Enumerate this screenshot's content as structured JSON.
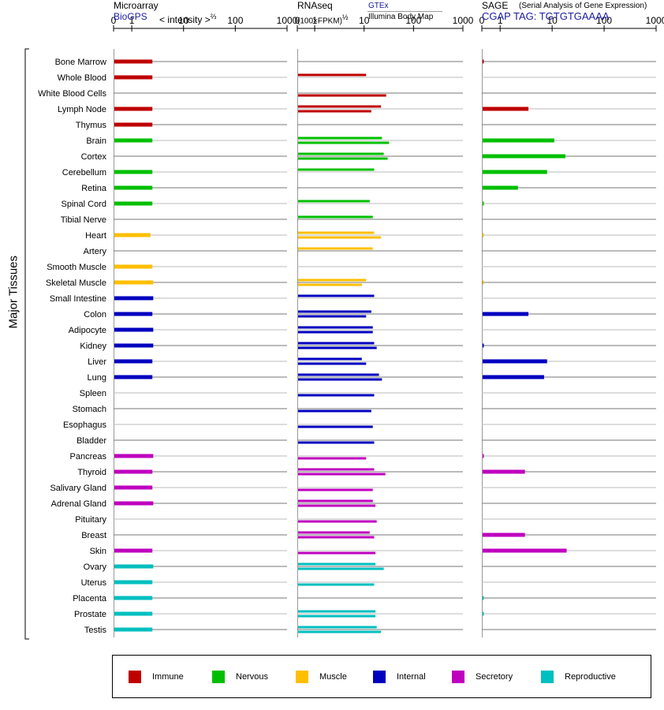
{
  "headers": {
    "microarray": {
      "title": "Microarray",
      "source": "BioGPS",
      "unit": "< intensity >",
      "unit_exp": "⅔"
    },
    "rnaseq": {
      "title": "RNAseq",
      "unit": "(100×FPKM)",
      "unit_exp": "½",
      "source": "GTEx",
      "source2": "Illumina Body Map"
    },
    "sage": {
      "title": "SAGE",
      "subtitle": "(Serial Analysis of Gene Expression)",
      "tag": "CGAP  TAG: TGTGTGAAAA"
    }
  },
  "legend": [
    {
      "label": "Immune",
      "color": "#bf0000"
    },
    {
      "label": "Nervous",
      "color": "#00bf00"
    },
    {
      "label": "Muscle",
      "color": "#ffbf00"
    },
    {
      "label": "Internal",
      "color": "#0000bf"
    },
    {
      "label": "Secretory",
      "color": "#bf00bf"
    },
    {
      "label": "Reproductive",
      "color": "#00bfbf"
    }
  ],
  "chart_data": {
    "type": "bar",
    "ylabel": "Major Tissues",
    "xticks": [
      "0",
      "1",
      "10",
      "100",
      "1000"
    ],
    "panels": [
      "Microarray",
      "RNAseq",
      "SAGE"
    ],
    "categories": [
      "Bone Marrow",
      "Whole Blood",
      "White Blood Cells",
      "Lymph Node",
      "Thymus",
      "Brain",
      "Cortex",
      "Cerebellum",
      "Retina",
      "Spinal Cord",
      "Tibial Nerve",
      "Heart",
      "Artery",
      "Smooth Muscle",
      "Skeletal Muscle",
      "Small Intestine",
      "Colon",
      "Adipocyte",
      "Kidney",
      "Liver",
      "Lung",
      "Spleen",
      "Stomach",
      "Esophagus",
      "Bladder",
      "Pancreas",
      "Thyroid",
      "Salivary Gland",
      "Adrenal Gland",
      "Pituitary",
      "Breast",
      "Skin",
      "Ovary",
      "Uterus",
      "Placenta",
      "Prostate",
      "Testis"
    ],
    "groups": [
      "Immune",
      "Immune",
      "Immune",
      "Immune",
      "Immune",
      "Nervous",
      "Nervous",
      "Nervous",
      "Nervous",
      "Nervous",
      "Nervous",
      "Muscle",
      "Muscle",
      "Muscle",
      "Muscle",
      "Internal",
      "Internal",
      "Internal",
      "Internal",
      "Internal",
      "Internal",
      "Internal",
      "Internal",
      "Internal",
      "Internal",
      "Secretory",
      "Secretory",
      "Secretory",
      "Secretory",
      "Secretory",
      "Secretory",
      "Secretory",
      "Reproductive",
      "Reproductive",
      "Reproductive",
      "Reproductive",
      "Reproductive"
    ],
    "microarray": [
      2.5,
      2.5,
      null,
      2.5,
      2.5,
      2.5,
      null,
      2.5,
      2.5,
      2.5,
      null,
      2.3,
      null,
      2.5,
      2.6,
      2.6,
      2.5,
      2.6,
      2.6,
      2.5,
      2.5,
      null,
      null,
      null,
      null,
      2.6,
      2.5,
      2.5,
      2.6,
      null,
      null,
      2.5,
      2.6,
      2.5,
      2.5,
      2.5,
      2.5
    ],
    "rnaseq_gtex": [
      null,
      11,
      null,
      22,
      null,
      23,
      25,
      16,
      null,
      13,
      15,
      16,
      15,
      null,
      11,
      16,
      14,
      15,
      16,
      9,
      20,
      null,
      null,
      null,
      null,
      null,
      16,
      null,
      15,
      null,
      13,
      null,
      17,
      null,
      null,
      17,
      18
    ],
    "rnaseq_ibm": [
      null,
      null,
      28,
      14,
      null,
      32,
      30,
      null,
      null,
      null,
      null,
      22,
      null,
      null,
      9,
      null,
      11,
      15,
      18,
      11,
      23,
      16,
      14,
      15,
      16,
      11,
      27,
      15,
      17,
      18,
      16,
      17,
      25,
      16,
      null,
      17,
      22
    ],
    "sage": [
      0.05,
      null,
      null,
      3.5,
      null,
      11,
      18,
      8,
      2.2,
      0.05,
      null,
      0.02,
      null,
      null,
      0.02,
      null,
      3.5,
      null,
      0.05,
      8,
      7,
      null,
      null,
      null,
      null,
      0.05,
      3,
      null,
      null,
      null,
      3,
      19,
      null,
      null,
      0.05,
      0.05,
      null
    ]
  }
}
